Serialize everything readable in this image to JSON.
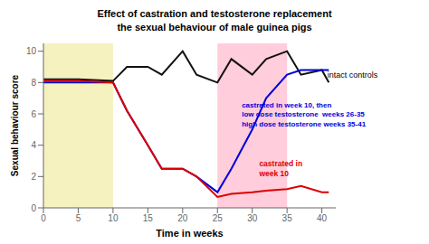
{
  "chart_data": {
    "type": "line",
    "title": "Effect of castration and testosterone replacement",
    "subtitle": "the sexual behaviour of male guinea pigs",
    "xlabel": "Time in weeks",
    "ylabel": "Sexual behaviour score",
    "x": [
      0,
      5,
      10,
      12,
      15,
      17,
      20,
      22,
      25,
      27,
      30,
      32,
      35,
      37,
      40,
      41
    ],
    "series": [
      {
        "color": "#111111",
        "values": [
          8.2,
          8.2,
          8.1,
          9.0,
          9.0,
          8.5,
          10.0,
          8.5,
          8.0,
          9.5,
          8.5,
          9.5,
          10.0,
          8.5,
          8.8,
          8.0
        ]
      },
      {
        "color": "#0000dd",
        "values": [
          8.0,
          8.0,
          8.0,
          6.2,
          4.0,
          2.5,
          2.5,
          2.0,
          1.0,
          2.5,
          5.0,
          7.0,
          8.5,
          8.8,
          8.8,
          8.8
        ]
      },
      {
        "color": "#dd0000",
        "values": [
          8.1,
          8.1,
          8.0,
          6.2,
          4.0,
          2.5,
          2.5,
          2.0,
          0.7,
          0.9,
          1.0,
          1.1,
          1.2,
          1.4,
          1.0,
          1.0
        ]
      }
    ],
    "xlim": [
      0,
      42
    ],
    "ylim": [
      0,
      10.5
    ],
    "xticks": [
      0,
      5,
      10,
      15,
      20,
      25,
      30,
      35,
      40
    ],
    "yticks": [
      0,
      2,
      4,
      6,
      8,
      10
    ],
    "grid": false,
    "bands": [
      {
        "x": [
          0,
          10
        ],
        "color": "#f5f2c0"
      },
      {
        "x": [
          25,
          35
        ],
        "color": "#ffb8cc"
      }
    ],
    "annotations": [
      {
        "text": "intact controls",
        "x": 40.8,
        "y": 8.5,
        "color": "#000000"
      },
      {
        "text": "castrated in week 10, then\nlow dose testosterone  weeks 26-35\nhigh dose testosterone weeks 35-41",
        "x": 28.5,
        "y": 6.8,
        "color": "#0000dd"
      },
      {
        "text": "castrated in\nweek 10",
        "x": 31.0,
        "y": 2.5,
        "color": "#dd0000"
      }
    ]
  }
}
